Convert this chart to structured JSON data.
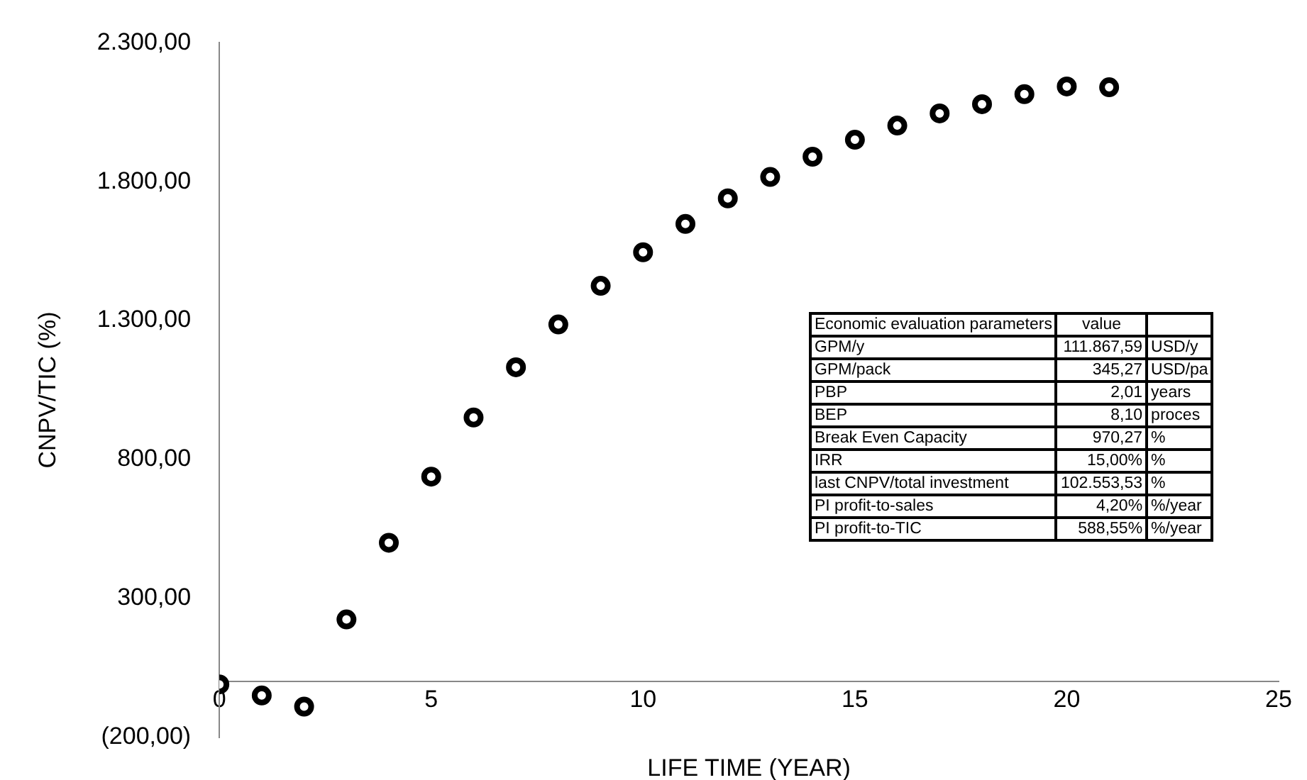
{
  "chart_data": {
    "type": "scatter",
    "xlabel": "LIFE TIME (YEAR)",
    "ylabel": "CNPV/TIC (%)",
    "x": [
      0,
      1,
      2,
      3,
      4,
      5,
      6,
      7,
      8,
      9,
      10,
      11,
      12,
      13,
      14,
      15,
      16,
      17,
      18,
      19,
      20,
      21
    ],
    "series": [
      {
        "color": "#000000",
        "values": [
          -10,
          -50,
          -90,
          224,
          500,
          738,
          951,
          1132,
          1286,
          1425,
          1546,
          1648,
          1740,
          1817,
          1890,
          1951,
          2002,
          2046,
          2079,
          2115,
          2143,
          2140
        ]
      }
    ],
    "xlim": [
      0,
      25
    ],
    "xticks": [
      0,
      5,
      10,
      15,
      20,
      25
    ],
    "ylim": [
      -200,
      2300
    ],
    "yticks": [
      {
        "value": -200,
        "label": "(200,00)"
      },
      {
        "value": 300,
        "label": "300,00"
      },
      {
        "value": 800,
        "label": "800,00"
      },
      {
        "value": 1300,
        "label": "1.300,00"
      },
      {
        "value": 1800,
        "label": "1.800,00"
      },
      {
        "value": 2300,
        "label": "2.300,00"
      }
    ],
    "grid": false,
    "legend": false,
    "marker": "circle",
    "annotations": [
      "Economic evaluation parameters",
      "value",
      "GPM/y",
      "111.867,59",
      "USD/y",
      "GPM/pack",
      "345,27",
      "USD/pa",
      "PBP",
      "2,01",
      "years",
      "BEP",
      "8,10",
      "proces",
      "Break Even Capacity",
      "970,27",
      "%",
      "IRR",
      "15,00%",
      "%",
      "last CNPV/total investment",
      "102.553,53",
      "%",
      "PI profit-to-sales",
      "4,20%",
      "%/year",
      "PI profit-to-TIC",
      "588,55%",
      "%/year"
    ]
  }
}
